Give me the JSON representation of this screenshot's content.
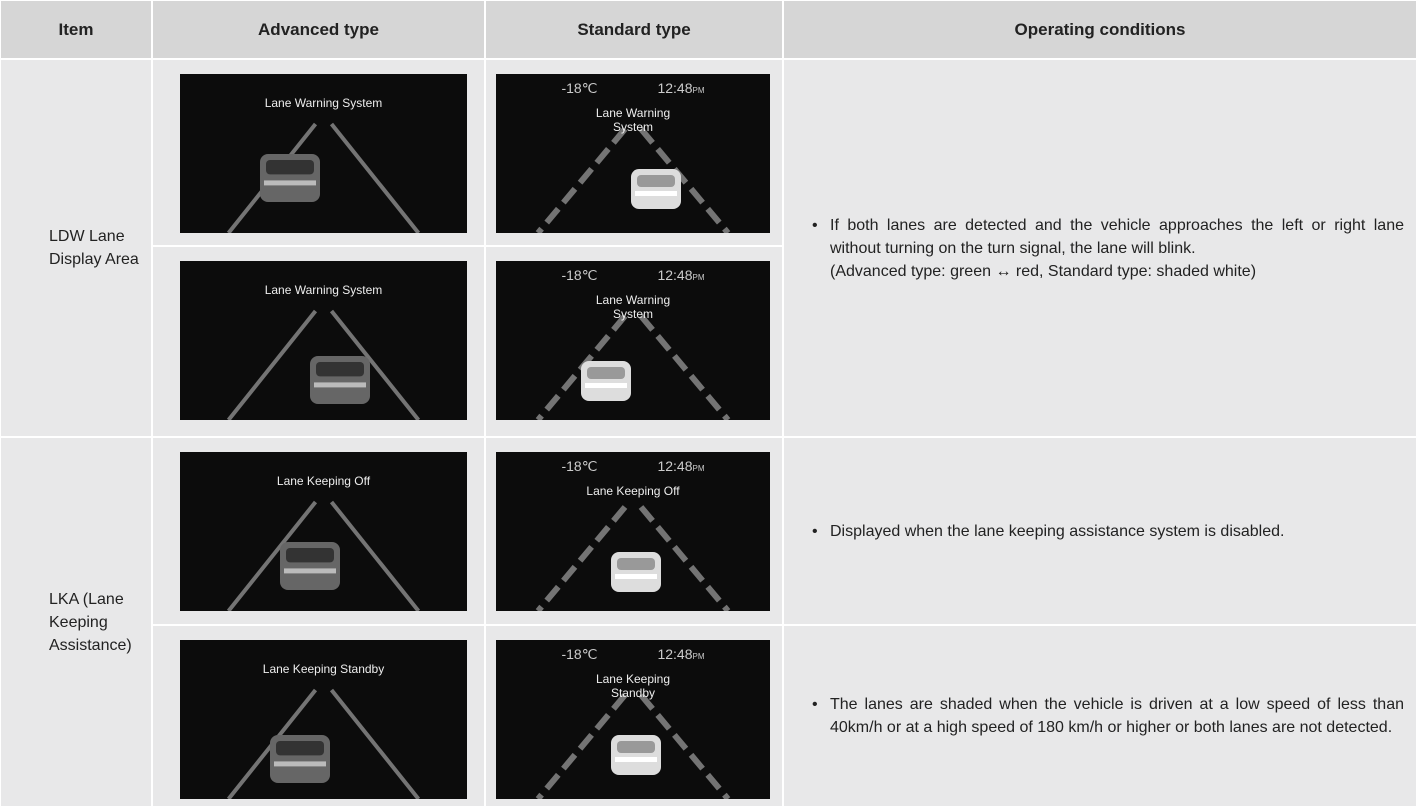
{
  "header": {
    "columns": [
      "Item",
      "Advanced type",
      "Standard type",
      "Operating conditions"
    ]
  },
  "status_bar": {
    "temperature": "-18℃",
    "time": "12:48",
    "meridiem": "PM"
  },
  "rows": [
    {
      "item": "LDW Lane Display Area",
      "screens": [
        {
          "advanced": "Lane Warning System",
          "standard": "Lane Warning System"
        },
        {
          "advanced": "Lane Warning System",
          "standard": "Lane Warning System"
        }
      ],
      "conditions": [
        {
          "text": "If both lanes are detected and the vehicle approaches the left or right lane without turning on the turn signal, the lane will blink.",
          "note": "(Advanced type: green ↔ red, Standard type: shaded white)"
        }
      ]
    },
    {
      "item": "LKA (Lane Keeping Assistance)",
      "screens": [
        {
          "advanced": "Lane Keeping Off",
          "standard": "Lane Keeping Off"
        },
        {
          "advanced": "Lane Keeping Standby",
          "standard": "Lane Keeping Standby"
        }
      ],
      "conditions": [
        {
          "text": "Displayed when the lane keeping assistance system is disabled."
        },
        {
          "text": "The lanes are shaded when the vehicle is driven at a low speed of less than 40km/h or at a high speed of 180 km/h or higher or both lanes are not detected."
        }
      ]
    }
  ]
}
